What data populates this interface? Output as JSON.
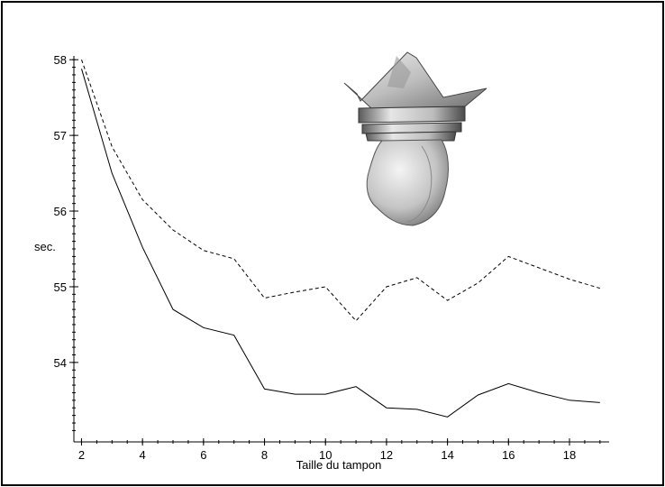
{
  "chart_data": {
    "type": "line",
    "title": "",
    "xlabel": "Taille du tampon",
    "ylabel": "sec.",
    "xlim": [
      1.75,
      19.3
    ],
    "ylim": [
      52.95,
      58.05
    ],
    "x_ticks": [
      2,
      4,
      6,
      8,
      10,
      12,
      14,
      16,
      18
    ],
    "y_ticks": [
      54,
      55,
      56,
      57,
      58
    ],
    "grid": false,
    "legend": "none",
    "x": [
      2,
      3,
      4,
      5,
      6,
      7,
      8,
      9,
      10,
      11,
      12,
      13,
      14,
      15,
      16,
      17,
      18,
      19
    ],
    "series": [
      {
        "style": "dashed",
        "color": "#000000",
        "values": [
          58.0,
          56.85,
          56.15,
          55.75,
          55.48,
          55.37,
          54.85,
          54.93,
          55.0,
          54.55,
          55.0,
          55.12,
          54.82,
          55.05,
          55.4,
          55.25,
          55.1,
          54.98
        ]
      },
      {
        "style": "solid",
        "color": "#000000",
        "values": [
          57.88,
          56.5,
          55.52,
          54.7,
          54.46,
          54.36,
          53.65,
          53.58,
          53.58,
          53.68,
          53.4,
          53.38,
          53.28,
          53.57,
          53.72,
          53.6,
          53.5,
          53.47
        ]
      }
    ]
  },
  "illustration": {
    "subject": "3d-mesh-model",
    "color": "#c8c8c8"
  }
}
